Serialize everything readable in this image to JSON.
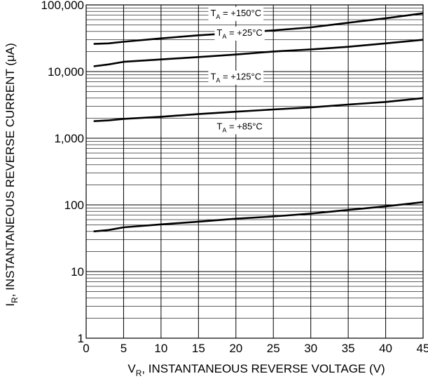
{
  "chart_data": {
    "type": "line",
    "xlabel": {
      "main": "V",
      "sub": "R",
      "rest": ", INSTANTANEOUS REVERSE VOLTAGE (V)"
    },
    "ylabel": {
      "main": "I",
      "sub": "R",
      "rest": ", INSTANTANEOUS REVERSE CURRENT (μA)"
    },
    "xlim": [
      0,
      45
    ],
    "ylim": [
      1,
      100000
    ],
    "yscale": "log",
    "grid": true,
    "x_ticks": [
      0,
      5,
      10,
      15,
      20,
      25,
      30,
      35,
      40,
      45
    ],
    "x_tick_labels": [
      "0",
      "5",
      "10",
      "15",
      "20",
      "25",
      "30",
      "35",
      "40",
      "45"
    ],
    "y_ticks": [
      1,
      10,
      100,
      1000,
      10000,
      100000
    ],
    "y_tick_labels": [
      "1",
      "10",
      "100",
      "1,000",
      "10,000",
      "100,000"
    ],
    "series": [
      {
        "label": {
          "pre": "T",
          "sub": "A",
          "post": " = +150°C"
        },
        "label_at": [
          20,
          75000
        ],
        "x": [
          1,
          3,
          5,
          10,
          15,
          20,
          25,
          30,
          35,
          40,
          45
        ],
        "y": [
          26000,
          26500,
          28000,
          31500,
          35000,
          38000,
          41500,
          46000,
          54000,
          63000,
          75000
        ]
      },
      {
        "label": {
          "pre": "T",
          "sub": "A",
          "post": " = +125°C"
        },
        "label_at": [
          20,
          8300
        ],
        "x": [
          1,
          3,
          5,
          10,
          15,
          20,
          25,
          30,
          35,
          40,
          45
        ],
        "y": [
          12000,
          12800,
          14000,
          15200,
          16500,
          18000,
          20000,
          21500,
          23500,
          26500,
          30000
        ]
      },
      {
        "label": {
          "pre": "T",
          "sub": "A",
          "post": " = +85°C"
        },
        "label_at": [
          20.5,
          1500
        ],
        "x": [
          1,
          3,
          5,
          10,
          15,
          20,
          25,
          30,
          35,
          40,
          45
        ],
        "y": [
          1800,
          1850,
          1950,
          2100,
          2300,
          2500,
          2700,
          2900,
          3200,
          3500,
          4000
        ]
      },
      {
        "label": {
          "pre": "T",
          "sub": "A",
          "post": " = +25°C"
        },
        "label_at": [
          20.5,
          38000
        ],
        "x": [
          1,
          3,
          5,
          10,
          15,
          20,
          25,
          30,
          35,
          40,
          45
        ],
        "y": [
          40,
          42,
          46,
          51,
          56,
          62,
          67,
          74,
          84,
          95,
          110
        ]
      }
    ]
  }
}
